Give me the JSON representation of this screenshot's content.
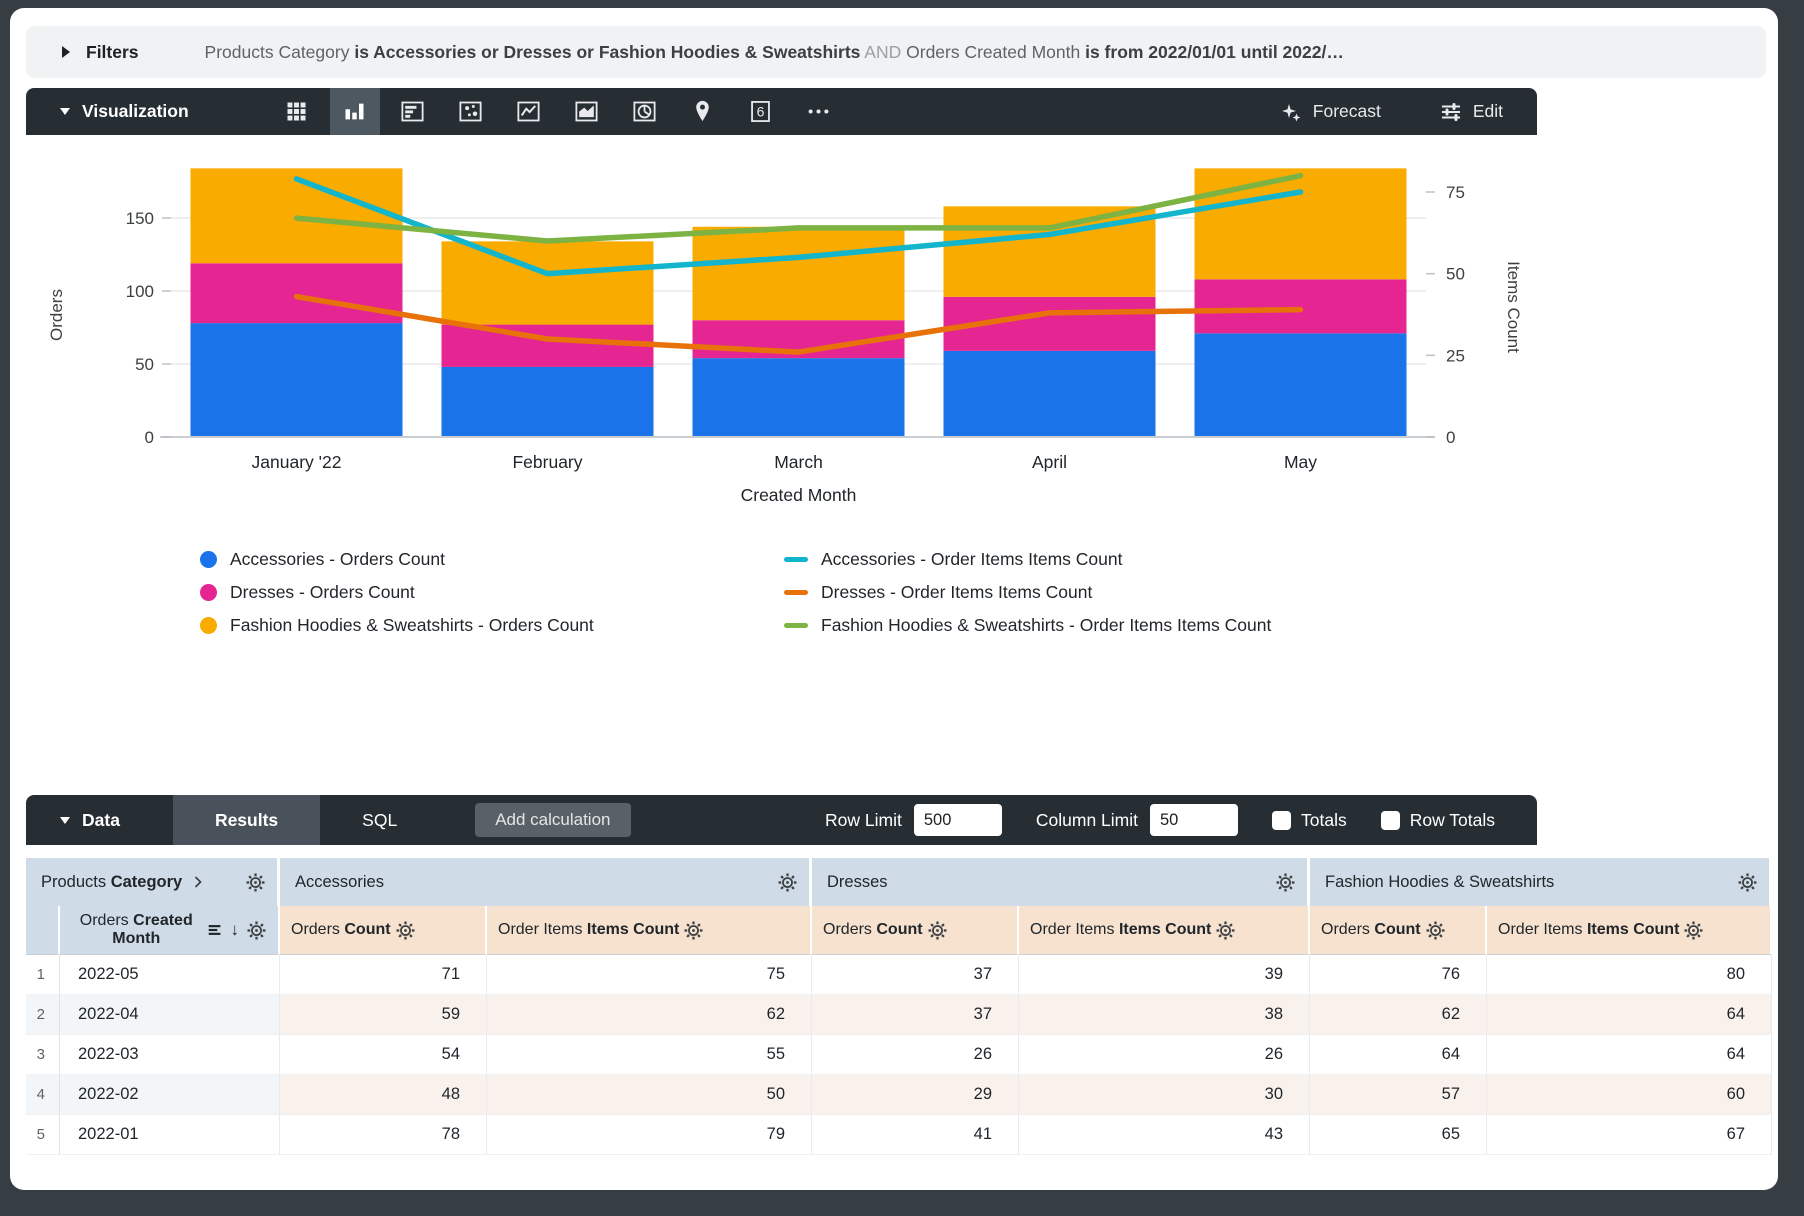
{
  "filters": {
    "label": "Filters",
    "parts": [
      {
        "text": "Products Category ",
        "style": "dim"
      },
      {
        "text": "is Accessories or Dresses or Fashion Hoodies & Sweatshirts",
        "style": "strong"
      },
      {
        "text": " AND ",
        "style": "faint"
      },
      {
        "text": "Orders Created Month ",
        "style": "dim"
      },
      {
        "text": "is from 2022/01/01 until 2022/…",
        "style": "strong"
      }
    ]
  },
  "viz_toolbar": {
    "title": "Visualization",
    "icons": [
      {
        "name": "table-chart-icon",
        "selected": false
      },
      {
        "name": "column-chart-icon",
        "selected": true
      },
      {
        "name": "bar-chart-icon",
        "selected": false
      },
      {
        "name": "scatter-chart-icon",
        "selected": false
      },
      {
        "name": "line-chart-icon",
        "selected": false
      },
      {
        "name": "area-chart-icon",
        "selected": false
      },
      {
        "name": "pie-chart-icon",
        "selected": false
      },
      {
        "name": "map-chart-icon",
        "selected": false
      },
      {
        "name": "single-value-icon",
        "selected": false
      },
      {
        "name": "more-viz-options-icon",
        "selected": false
      }
    ],
    "single_value_text": "6",
    "forecast_label": "Forecast",
    "edit_label": "Edit"
  },
  "chart_data": {
    "type": "combo-stacked-bar-and-line",
    "categories": [
      "January '22",
      "February",
      "March",
      "April",
      "May"
    ],
    "xlabel": "Created Month",
    "left_axis": {
      "label": "Orders",
      "ticks": [
        0,
        50,
        100,
        150
      ]
    },
    "right_axis": {
      "label": "Items Count",
      "ticks": [
        0,
        25,
        50,
        75
      ]
    },
    "bar_series": [
      {
        "name": "Accessories - Orders Count",
        "color": "#1a73e8",
        "values": [
          78,
          48,
          54,
          59,
          71
        ]
      },
      {
        "name": "Dresses - Orders Count",
        "color": "#e52592",
        "values": [
          41,
          29,
          26,
          37,
          37
        ]
      },
      {
        "name": "Fashion Hoodies & Sweatshirts - Orders Count",
        "color": "#f9ab00",
        "values": [
          65,
          57,
          64,
          62,
          76
        ]
      }
    ],
    "line_series": [
      {
        "name": "Accessories - Order Items Items Count",
        "color": "#12b5cb",
        "values": [
          79,
          50,
          55,
          62,
          75
        ]
      },
      {
        "name": "Dresses - Order Items Items Count",
        "color": "#e8710a",
        "values": [
          43,
          30,
          26,
          38,
          39
        ]
      },
      {
        "name": "Fashion Hoodies & Sweatshirts - Order Items Items Count",
        "color": "#7cb342",
        "values": [
          67,
          60,
          64,
          64,
          80
        ]
      }
    ],
    "legend_position": "bottom",
    "grid": true
  },
  "data_panel": {
    "title": "Data",
    "tabs": [
      "Results",
      "SQL"
    ],
    "add_calculation_label": "Add calculation",
    "row_limit_label": "Row Limit",
    "row_limit_value": "500",
    "column_limit_label": "Column Limit",
    "column_limit_value": "50",
    "totals_label": "Totals",
    "row_totals_label": "Row Totals"
  },
  "table": {
    "dimension_group": {
      "prefix": "Products",
      "bold": "Category"
    },
    "dimension_col": {
      "prefix": "Orders",
      "bold": "Created Month"
    },
    "groups": [
      "Accessories",
      "Dresses",
      "Fashion Hoodies & Sweatshirts"
    ],
    "measure_cols": [
      {
        "prefix": "Orders",
        "bold": "Count"
      },
      {
        "prefix": "Order Items",
        "bold": "Items Count"
      }
    ],
    "rows": [
      {
        "n": 1,
        "month": "2022-05",
        "values": [
          71,
          75,
          37,
          39,
          76,
          80
        ]
      },
      {
        "n": 2,
        "month": "2022-04",
        "values": [
          59,
          62,
          37,
          38,
          62,
          64
        ]
      },
      {
        "n": 3,
        "month": "2022-03",
        "values": [
          54,
          55,
          26,
          26,
          64,
          64
        ]
      },
      {
        "n": 4,
        "month": "2022-02",
        "values": [
          48,
          50,
          29,
          30,
          57,
          60
        ]
      },
      {
        "n": 5,
        "month": "2022-01",
        "values": [
          78,
          79,
          41,
          43,
          65,
          67
        ]
      }
    ]
  },
  "colors": {
    "toolbar_dark": "#262d33",
    "selected_tab": "#49525a",
    "group_header_bg": "#cfdbe7",
    "measure_header_bg": "#f6e2ce",
    "accent_blue": "#1a73e8",
    "accent_pink": "#e52592",
    "accent_yellow": "#f9ab00",
    "accent_teal": "#12b5cb",
    "accent_orange": "#e8710a",
    "accent_green": "#7cb342"
  }
}
